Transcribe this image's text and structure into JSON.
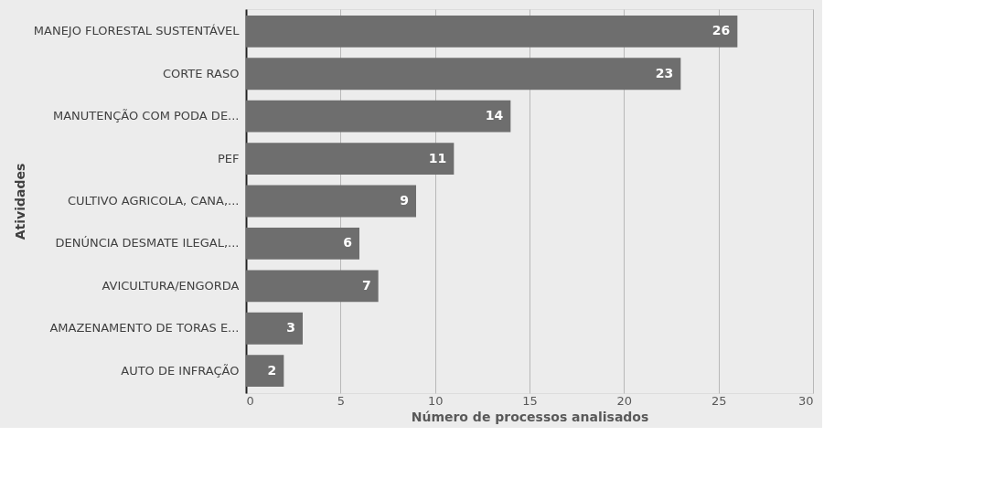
{
  "chart_data": {
    "type": "bar",
    "orientation": "horizontal",
    "xlabel": "Número de processos analisados",
    "ylabel": "Atividades",
    "categories": [
      "MANEJO FLORESTAL SUSTENTÁVEL",
      "CORTE RASO",
      "MANUTENÇÃO COM PODA DE...",
      "PEF",
      "CULTIVO AGRICOLA, CANA,...",
      "DENÚNCIA DESMATE ILEGAL,...",
      "AVICULTURA/ENGORDA",
      "AMAZENAMENTO DE TORAS E...",
      "AUTO DE INFRAÇÃO"
    ],
    "values": [
      26,
      23,
      14,
      11,
      9,
      6,
      7,
      3,
      2
    ],
    "color": "#6e6e6e",
    "xlim": [
      0,
      30
    ],
    "xticks": [
      0,
      5,
      10,
      15,
      20,
      25,
      30
    ],
    "grid": "x",
    "data_labels": true
  }
}
